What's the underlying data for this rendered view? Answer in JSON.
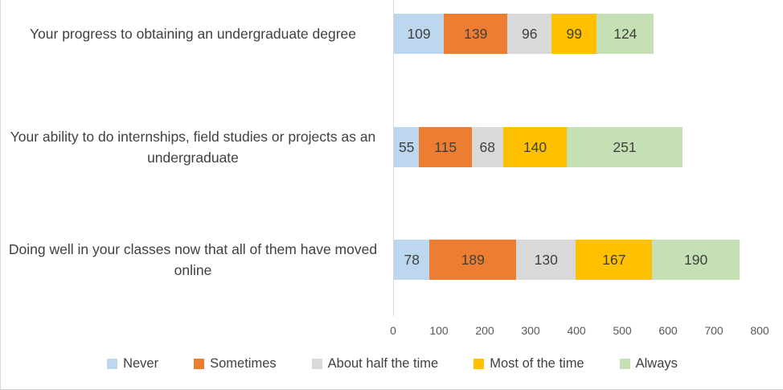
{
  "chart_data": {
    "type": "bar",
    "variant": "horizontal-stacked",
    "title": "",
    "xlabel": "",
    "ylabel": "",
    "grid": false,
    "legend_position": "bottom",
    "xlim": [
      0,
      800
    ],
    "x_ticks": [
      0,
      100,
      200,
      300,
      400,
      500,
      600,
      700,
      800
    ],
    "categories": [
      "Your progress to obtaining an undergraduate degree",
      "Your ability to do internships, field studies or projects as an undergraduate",
      "Doing well in your classes now that all of them have moved online"
    ],
    "series": [
      {
        "name": "Never",
        "color": "#BDD7EE",
        "values": [
          109,
          55,
          78
        ]
      },
      {
        "name": "Sometimes",
        "color": "#ED7D31",
        "values": [
          139,
          115,
          189
        ]
      },
      {
        "name": "About half the time",
        "color": "#D9D9D9",
        "values": [
          96,
          68,
          130
        ]
      },
      {
        "name": "Most of the time",
        "color": "#FFC000",
        "values": [
          99,
          140,
          167
        ]
      },
      {
        "name": "Always",
        "color": "#C5E0B4",
        "values": [
          124,
          251,
          190
        ]
      }
    ],
    "colors": {
      "data_label": "#404040",
      "category_label": "#404040",
      "tick_label": "#595959",
      "axis_line": "#D9D9D9"
    }
  }
}
